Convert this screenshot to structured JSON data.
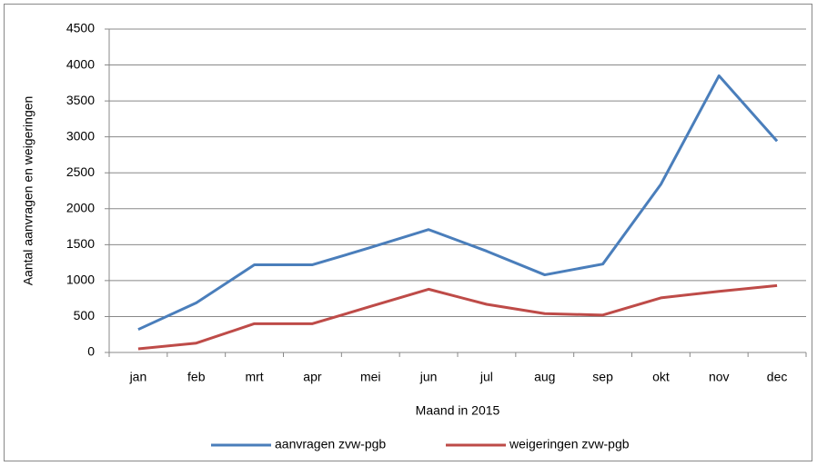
{
  "chart_data": {
    "type": "line",
    "x_label": "Maand in 2015",
    "y_label": "Aantal aanvragen en weigeringen",
    "categories": [
      "jan",
      "feb",
      "mrt",
      "apr",
      "mei",
      "jun",
      "jul",
      "aug",
      "sep",
      "okt",
      "nov",
      "dec"
    ],
    "series": [
      {
        "name": "aanvragen zvw-pgb",
        "color": "#4a7ebb",
        "values": [
          320,
          690,
          1220,
          1220,
          1460,
          1710,
          1410,
          1080,
          1230,
          2340,
          3850,
          2940
        ]
      },
      {
        "name": "weigeringen zvw-pgb",
        "color": "#be4b48",
        "values": [
          50,
          130,
          400,
          400,
          640,
          880,
          670,
          540,
          520,
          760,
          850,
          930
        ]
      }
    ],
    "ylim": [
      0,
      4500
    ],
    "yticks": [
      0,
      500,
      1000,
      1500,
      2000,
      2500,
      3000,
      3500,
      4000,
      4500
    ],
    "grid": true,
    "legend": "bottom"
  }
}
